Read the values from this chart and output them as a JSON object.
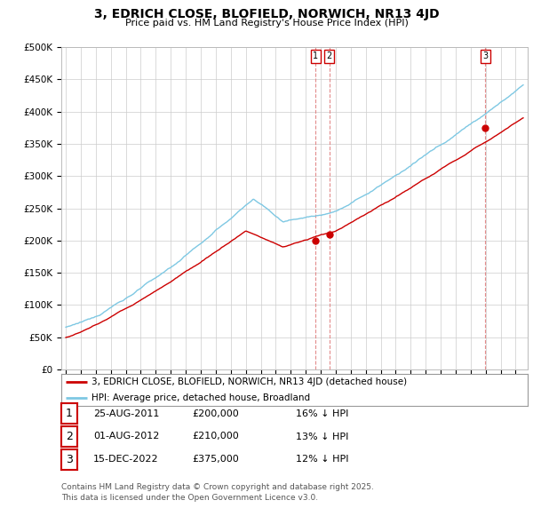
{
  "title": "3, EDRICH CLOSE, BLOFIELD, NORWICH, NR13 4JD",
  "subtitle": "Price paid vs. HM Land Registry's House Price Index (HPI)",
  "ylim": [
    0,
    500000
  ],
  "yticks": [
    0,
    50000,
    100000,
    150000,
    200000,
    250000,
    300000,
    350000,
    400000,
    450000,
    500000
  ],
  "ytick_labels": [
    "£0",
    "£50K",
    "£100K",
    "£150K",
    "£200K",
    "£250K",
    "£300K",
    "£350K",
    "£400K",
    "£450K",
    "£500K"
  ],
  "hpi_color": "#7ec8e3",
  "price_color": "#cc0000",
  "vline_color": "#cc0000",
  "background_color": "#ffffff",
  "grid_color": "#cccccc",
  "sale_year_nums": [
    2011.648,
    2012.581,
    2022.958
  ],
  "sale_prices": [
    200000,
    210000,
    375000
  ],
  "sale_labels": [
    "1",
    "2",
    "3"
  ],
  "legend_property_label": "3, EDRICH CLOSE, BLOFIELD, NORWICH, NR13 4JD (detached house)",
  "legend_hpi_label": "HPI: Average price, detached house, Broadland",
  "table_rows": [
    {
      "num": "1",
      "date": "25-AUG-2011",
      "price": "£200,000",
      "hpi": "16% ↓ HPI"
    },
    {
      "num": "2",
      "date": "01-AUG-2012",
      "price": "£210,000",
      "hpi": "13% ↓ HPI"
    },
    {
      "num": "3",
      "date": "15-DEC-2022",
      "price": "£375,000",
      "hpi": "12% ↓ HPI"
    }
  ],
  "footer_line1": "Contains HM Land Registry data © Crown copyright and database right 2025.",
  "footer_line2": "This data is licensed under the Open Government Licence v3.0.",
  "x_start_year": 1995,
  "x_end_year": 2025
}
